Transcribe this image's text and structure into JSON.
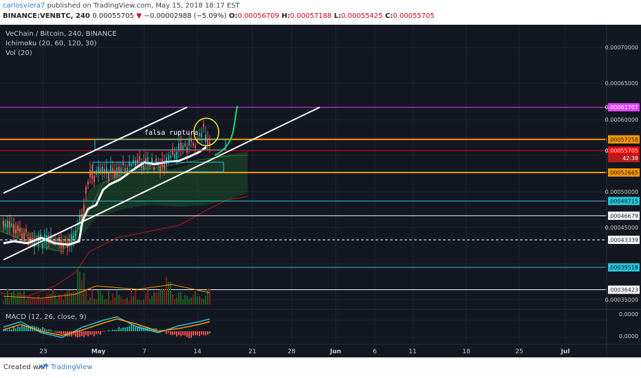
{
  "header": {
    "publisher": "carlosviera7",
    "published_text": " published on TradingView.com, May 15, 2018 18:17 EST",
    "symbol_label": "BINANCE:VENBTC, 240",
    "last_price": "0.00055705",
    "change_arrow": "▼",
    "change_text": "−0.00002988 (−5.09%)",
    "o_label": "O:",
    "o_value": "0.00056709",
    "h_label": "H:",
    "h_value": "0.00057188",
    "l_label": "L:",
    "l_value": "0.00055425",
    "c_label": "C:",
    "c_value": "0.00055705"
  },
  "legend": {
    "symbol": "VeChain / Bitcoin, 240, BINANCE",
    "ichimoku": "Ichimoku (20, 60, 120, 30)",
    "volume": "Vol (20)",
    "macd": "MACD (12, 26, close, 9)"
  },
  "annotation": {
    "text": "falsa ruptura"
  },
  "colors": {
    "background": "#131722",
    "grid": "#1f2430",
    "magenta": "#e040fb",
    "orange": "#ff9800",
    "cyan": "#26c6da",
    "white": "#ffffff",
    "green_curve": "#00e676",
    "yellow": "#ffeb3b",
    "red_price": "#f50000"
  },
  "footer": {
    "created_with": "Created with",
    "brand": "TradingView"
  },
  "chart_data": {
    "type": "line",
    "x_axis": {
      "tick_labels": [
        "23",
        "May",
        "7",
        "14",
        "21",
        "28",
        "Jun",
        "6",
        "11",
        "18",
        "25",
        "Jul"
      ]
    },
    "y_axis": {
      "scale_labels": [
        "0.00070000",
        "0.00065000",
        "0.00060000",
        "0.00050000",
        "0.00045000",
        "0.00035000"
      ],
      "price_tags": [
        {
          "value": "0.00061707",
          "color": "#e040fb"
        },
        {
          "value": "0.00057258",
          "color": "#ff9800"
        },
        {
          "value": "0.00055705",
          "color": "#f50000",
          "countdown": "42:38"
        },
        {
          "value": "0.00052665",
          "color": "#ff9800"
        },
        {
          "value": "0.00048715",
          "color": "#26c6da"
        },
        {
          "value": "0.00046679",
          "color": "#ffffff"
        },
        {
          "value": "0.00043339",
          "color": "#ffffff"
        },
        {
          "value": "0.00039518",
          "color": "#26c6da"
        },
        {
          "value": "0.00036423",
          "color": "#ffffff"
        }
      ]
    },
    "horizontal_levels": [
      {
        "price": 0.00061707,
        "color": "#e040fb",
        "style": "solid"
      },
      {
        "price": 0.00057258,
        "color": "#ff9800",
        "style": "solid"
      },
      {
        "price": 0.00055705,
        "color": "#f50000",
        "style": "solid"
      },
      {
        "price": 0.00052665,
        "color": "#ff9800",
        "style": "solid"
      },
      {
        "price": 0.00048715,
        "color": "#26c6da",
        "style": "solid"
      },
      {
        "price": 0.00046679,
        "color": "#ffffff",
        "style": "solid"
      },
      {
        "price": 0.00043339,
        "color": "#ffffff",
        "style": "dashed"
      },
      {
        "price": 0.00039518,
        "color": "#26c6da",
        "style": "solid"
      },
      {
        "price": 0.00036423,
        "color": "#ffffff",
        "style": "solid"
      }
    ],
    "macd_axis_labels": [
      "0.0000",
      "0.0000"
    ]
  }
}
